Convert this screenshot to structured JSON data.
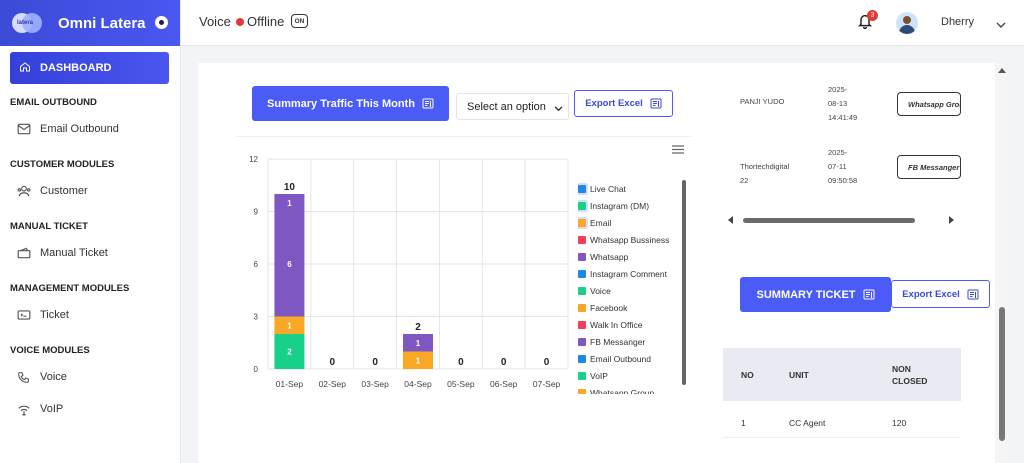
{
  "app": {
    "brand_name": "Omni Latera",
    "logo_text": "latera"
  },
  "header": {
    "voice_label": "Voice",
    "status_text": "Offline",
    "toggle_label": "ON",
    "notification_count": "3",
    "user_name": "Dherry",
    "status_color": "#e53935"
  },
  "sidebar": {
    "dashboard": "DASHBOARD",
    "sections": [
      {
        "title": "EMAIL OUTBOUND",
        "items": [
          {
            "label": "Email Outbound",
            "icon": "mail-icon"
          }
        ]
      },
      {
        "title": "CUSTOMER MODULES",
        "items": [
          {
            "label": "Customer",
            "icon": "users-icon"
          }
        ]
      },
      {
        "title": "MANUAL TICKET",
        "items": [
          {
            "label": "Manual Ticket",
            "icon": "ticket-icon"
          }
        ]
      },
      {
        "title": "MANAGEMENT MODULES",
        "items": [
          {
            "label": "Ticket",
            "icon": "ticket-card-icon"
          }
        ]
      },
      {
        "title": "VOICE MODULES",
        "items": [
          {
            "label": "Voice",
            "icon": "phone-icon"
          },
          {
            "label": "VoIP",
            "icon": "voip-icon"
          }
        ]
      }
    ]
  },
  "traffic": {
    "button_label": "Summary Traffic This Month",
    "select_placeholder": "Select an option",
    "export_label": "Export Excel"
  },
  "chart_data": {
    "type": "bar",
    "stacked": true,
    "categories": [
      "01-Sep",
      "02-Sep",
      "03-Sep",
      "04-Sep",
      "05-Sep",
      "06-Sep",
      "07-Sep"
    ],
    "ylim": [
      0,
      12
    ],
    "yticks": [
      0,
      3,
      6,
      9,
      12
    ],
    "totals": [
      10,
      0,
      0,
      2,
      0,
      0,
      0
    ],
    "series": [
      {
        "name": "Live Chat",
        "color": "#1e88e5",
        "values": [
          0,
          0,
          0,
          0,
          0,
          0,
          0
        ]
      },
      {
        "name": "Instagram (DM)",
        "color": "#19d08a",
        "values": [
          2,
          0,
          0,
          0,
          0,
          0,
          0
        ]
      },
      {
        "name": "Email",
        "color": "#f9a825",
        "values": [
          1,
          0,
          0,
          1,
          0,
          0,
          0
        ]
      },
      {
        "name": "Whatsapp Bussiness",
        "color": "#f2405c",
        "values": [
          0,
          0,
          0,
          0,
          0,
          0,
          0
        ]
      },
      {
        "name": "Whatsapp",
        "color": "#7e57c2",
        "values": [
          6,
          0,
          0,
          1,
          0,
          0,
          0
        ]
      },
      {
        "name": "Instagram Comment",
        "color": "#1e88e5",
        "values": [
          0,
          0,
          0,
          0,
          0,
          0,
          0
        ]
      },
      {
        "name": "Voice",
        "color": "#19d08a",
        "values": [
          0,
          0,
          0,
          0,
          0,
          0,
          0
        ]
      },
      {
        "name": "Facebook",
        "color": "#f9a825",
        "values": [
          0,
          0,
          0,
          0,
          0,
          0,
          0
        ]
      },
      {
        "name": "Walk In Office",
        "color": "#f2405c",
        "values": [
          0,
          0,
          0,
          0,
          0,
          0,
          0
        ]
      },
      {
        "name": "FB Messanger",
        "color": "#7e57c2",
        "values": [
          1,
          0,
          0,
          0,
          0,
          0,
          0
        ]
      },
      {
        "name": "Email Outbound",
        "color": "#1e88e5",
        "values": [
          0,
          0,
          0,
          0,
          0,
          0,
          0
        ]
      },
      {
        "name": "VoIP",
        "color": "#19d08a",
        "values": [
          0,
          0,
          0,
          0,
          0,
          0,
          0
        ]
      },
      {
        "name": "Whatsapp Group",
        "color": "#f9a825",
        "values": [
          0,
          0,
          0,
          0,
          0,
          0,
          0
        ]
      }
    ],
    "highlighted_legend": [
      "Live Chat",
      "Instagram (DM)",
      "Email"
    ]
  },
  "transactions": [
    {
      "name_lines": [
        "PANJI YUDO"
      ],
      "time_lines": [
        "2025-",
        "08-13",
        "14:41:49"
      ],
      "channel": "Whatsapp Group"
    },
    {
      "name_lines": [
        "Thortechdigital",
        "22"
      ],
      "time_lines": [
        "2025-",
        "07-11",
        "09:50:58"
      ],
      "channel": "FB Messanger"
    }
  ],
  "summary_ticket": {
    "button_label": "SUMMARY TICKET",
    "export_label": "Export Excel",
    "columns": [
      "NO",
      "UNIT",
      "NON CLOSED"
    ],
    "rows": [
      {
        "no": "1",
        "unit": "CC Agent",
        "non_closed": "120"
      }
    ]
  }
}
